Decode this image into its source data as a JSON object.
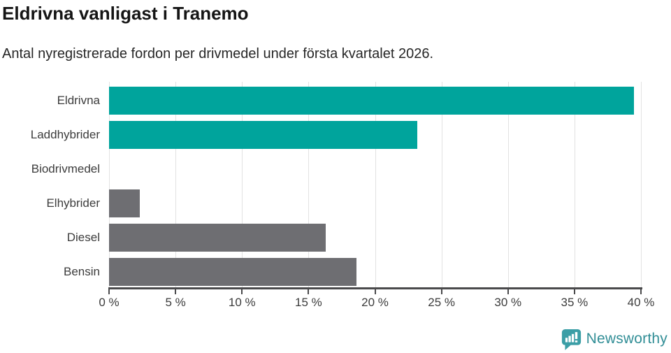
{
  "header": {
    "title": "Eldrivna vanligast i Tranemo",
    "subtitle": "Antal nyregistrerade fordon per drivmedel under första kvartalet 2026."
  },
  "chart_data": {
    "type": "bar",
    "orientation": "horizontal",
    "title": "Eldrivna vanligast i Tranemo",
    "subtitle": "Antal nyregistrerade fordon per drivmedel under första kvartalet 2026.",
    "categories": [
      "Eldrivna",
      "Laddhybrider",
      "Biodrivmedel",
      "Elhybrider",
      "Diesel",
      "Bensin"
    ],
    "values": [
      39.5,
      23.2,
      0,
      2.3,
      16.3,
      18.6
    ],
    "unit": "%",
    "xlabel": "",
    "ylabel": "",
    "xlim": [
      0,
      40
    ],
    "x_ticks": [
      0,
      5,
      10,
      15,
      20,
      25,
      30,
      35,
      40
    ],
    "x_tick_labels": [
      "0 %",
      "5 %",
      "10 %",
      "15 %",
      "20 %",
      "25 %",
      "30 %",
      "35 %",
      "40 %"
    ],
    "bar_colors": [
      "#00a49c",
      "#00a49c",
      "#6e6e72",
      "#6e6e72",
      "#6e6e72",
      "#6e6e72"
    ],
    "highlight_color": "#00a49c",
    "default_color": "#6e6e72",
    "grid": true,
    "gridline_color": "#e2e2e2",
    "axis_color": "#4a4a4c",
    "legend": "none"
  },
  "footer": {
    "brand": "Newsworthy",
    "brand_color": "#318e96",
    "logo_icon": "bar-chart-speech-bubble",
    "logo_color": "#3b9ea6"
  }
}
